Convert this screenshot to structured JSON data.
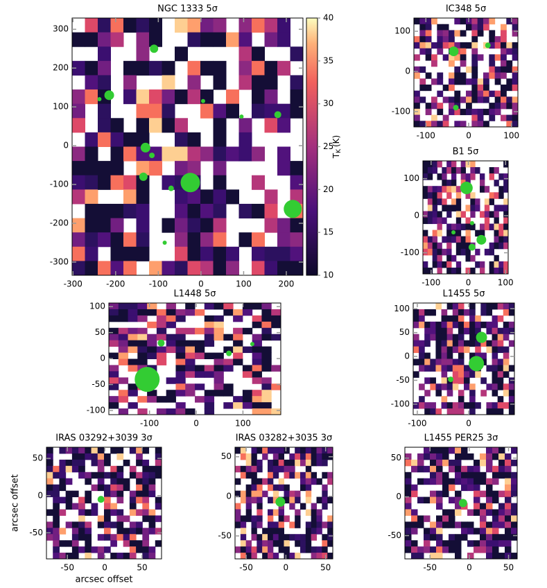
{
  "chart_data": [
    {
      "type": "scatter",
      "title": "NGC 1333 5σ",
      "xlim": [
        -302,
        239
      ],
      "ylim": [
        -334,
        329
      ],
      "xticks": [
        -300,
        -200,
        -100,
        0,
        100,
        200
      ],
      "yticks": [
        -300,
        -200,
        -100,
        0,
        100,
        200,
        300
      ],
      "color": "#33cc33",
      "x": [
        -215,
        -238,
        -110,
        -130,
        -115,
        -135,
        -25,
        -70,
        215,
        180,
        95,
        5,
        -85
      ],
      "y": [
        130,
        120,
        250,
        -5,
        -25,
        -80,
        -95,
        -110,
        -163,
        80,
        75,
        115,
        -250
      ],
      "sizes": [
        7,
        3,
        6,
        7,
        4,
        6,
        14,
        4,
        13,
        5,
        3,
        3,
        3
      ]
    },
    {
      "type": "scatter",
      "title": "IC348 5σ",
      "xlim": [
        -128,
        115
      ],
      "ylim": [
        -138,
        133
      ],
      "xticks": [
        -100,
        0,
        100
      ],
      "yticks": [
        -100,
        0,
        100
      ],
      "color": "#33cc33",
      "x": [
        -35,
        45,
        -30
      ],
      "y": [
        50,
        65,
        -90
      ],
      "sizes": [
        7,
        4,
        4
      ]
    },
    {
      "type": "scatter",
      "title": "B1 5σ",
      "xlim": [
        -122,
        107
      ],
      "ylim": [
        -157,
        148
      ],
      "xticks": [
        -100,
        0,
        100
      ],
      "yticks": [
        -100,
        0,
        100
      ],
      "color": "#33cc33",
      "x": [
        -5,
        35,
        10,
        10,
        -40
      ],
      "y": [
        75,
        -65,
        -85,
        -20,
        -45
      ],
      "sizes": [
        9,
        7,
        5,
        3,
        3
      ]
    },
    {
      "type": "scatter",
      "title": "L1448 5σ",
      "xlim": [
        -187,
        181
      ],
      "ylim": [
        -108,
        107
      ],
      "xticks": [
        -100,
        0,
        100
      ],
      "yticks": [
        -100,
        -50,
        0,
        50,
        100
      ],
      "color": "#33cc33",
      "x": [
        -105,
        -75,
        70,
        120
      ],
      "y": [
        -40,
        30,
        10,
        28
      ],
      "sizes": [
        18,
        5,
        4,
        3
      ]
    },
    {
      "type": "scatter",
      "title": "L1455 5σ",
      "xlim": [
        -108,
        89
      ],
      "ylim": [
        -122,
        112
      ],
      "xticks": [
        -100,
        0
      ],
      "yticks": [
        -100,
        -50,
        0,
        50,
        100
      ],
      "color": "#33cc33",
      "x": [
        25,
        15,
        -35
      ],
      "y": [
        40,
        -15,
        -48
      ],
      "sizes": [
        8,
        11,
        4
      ]
    },
    {
      "type": "scatter",
      "title": "IRAS 03292+3039 3σ",
      "xlim": [
        -78,
        76
      ],
      "ylim": [
        -85,
        65
      ],
      "xticks": [
        -50,
        0,
        50
      ],
      "yticks": [
        -50,
        0,
        50
      ],
      "color": "#33cc33",
      "x_label": "arcsec offset",
      "y_label": "arcsec offset",
      "x": [
        -5
      ],
      "y": [
        -5
      ],
      "sizes": [
        5
      ]
    },
    {
      "type": "scatter",
      "title": "IRAS 03282+3035 3σ",
      "xlim": [
        -64,
        59
      ],
      "ylim": [
        -79,
        62
      ],
      "xticks": [
        -50,
        0,
        50
      ],
      "yticks": [
        -50,
        0,
        50
      ],
      "color": "#33cc33",
      "x": [
        -7
      ],
      "y": [
        -7
      ],
      "sizes": [
        7
      ]
    },
    {
      "type": "scatter",
      "title": "L1455 PER25 3σ",
      "xlim": [
        -82,
        61
      ],
      "ylim": [
        -80,
        64
      ],
      "xticks": [
        -50,
        0,
        50
      ],
      "yticks": [
        -50,
        0,
        50
      ],
      "color": "#33cc33",
      "x": [
        -8
      ],
      "y": [
        -8
      ],
      "sizes": [
        6
      ]
    }
  ],
  "colorbar": {
    "label_main": "T",
    "label_sub": "K",
    "label_unit": "(K)",
    "lim": [
      10,
      40
    ],
    "ticks": [
      10,
      15,
      20,
      25,
      30,
      35,
      40
    ]
  }
}
